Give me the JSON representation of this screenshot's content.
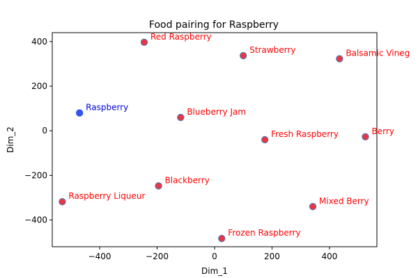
{
  "chart_data": {
    "type": "scatter",
    "title": "Food pairing for Raspberry",
    "xlabel": "Dim_1",
    "ylabel": "Dim_2",
    "xlim": [
      -565,
      565
    ],
    "ylim": [
      -520,
      440
    ],
    "xticks": [
      -400,
      -200,
      0,
      200,
      400
    ],
    "yticks": [
      -400,
      -200,
      0,
      200,
      400
    ],
    "grid": false,
    "colors": {
      "query_point": "#3355ee",
      "query_label": "#0000dd",
      "pair_point": "#ee3344",
      "pair_edge": "#5577aa",
      "pair_label": "#ff0000"
    },
    "points": [
      {
        "label": "Raspberry",
        "x": -470,
        "y": 80,
        "group": "query"
      },
      {
        "label": "Red Raspberry",
        "x": -245,
        "y": 397,
        "group": "pair"
      },
      {
        "label": "Strawberry",
        "x": 100,
        "y": 337,
        "group": "pair"
      },
      {
        "label": "Balsamic Vineg",
        "x": 435,
        "y": 323,
        "group": "pair"
      },
      {
        "label": "Blueberry Jam",
        "x": -118,
        "y": 60,
        "group": "pair"
      },
      {
        "label": "Fresh Raspberry",
        "x": 175,
        "y": -40,
        "group": "pair"
      },
      {
        "label": "Berry",
        "x": 525,
        "y": -27,
        "group": "pair"
      },
      {
        "label": "Blackberry",
        "x": -195,
        "y": -247,
        "group": "pair"
      },
      {
        "label": "Raspberry Liqueur",
        "x": -530,
        "y": -318,
        "group": "pair"
      },
      {
        "label": "Mixed Berry",
        "x": 342,
        "y": -340,
        "group": "pair"
      },
      {
        "label": "Frozen Raspberry",
        "x": 25,
        "y": -483,
        "group": "pair"
      }
    ]
  }
}
